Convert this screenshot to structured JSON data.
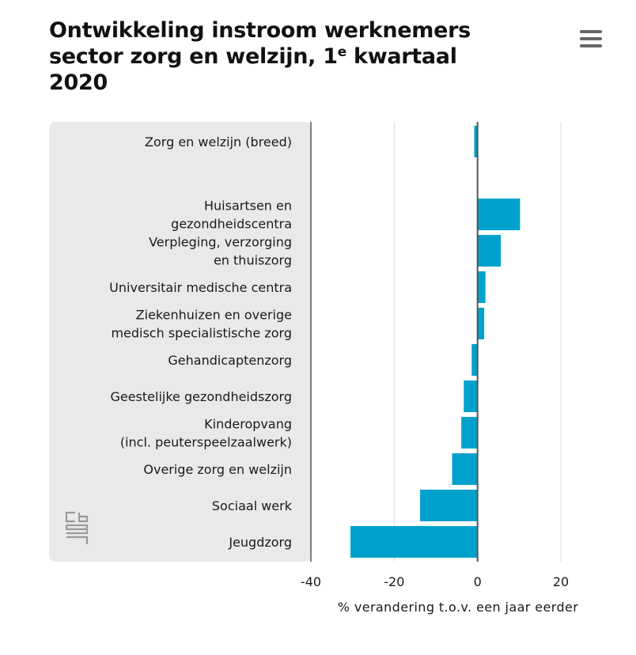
{
  "title": {
    "line1": "Ontwikkeling instroom werknemers",
    "line2_pre": "sector zorg en welzijn, 1",
    "line2_sup": "e",
    "line2_post": " kwartaal",
    "line3": "2020"
  },
  "menu_icon": "hamburger-menu-icon",
  "logo_icon": "cbs-logo-icon",
  "colors": {
    "bar": "#00a1cd",
    "panel": "#e9e9e9",
    "grid": "#dddddd",
    "axis": "#555555"
  },
  "chart_data": {
    "type": "bar",
    "orientation": "horizontal",
    "title": "Ontwikkeling instroom werknemers sector zorg en welzijn, 1e kwartaal 2020",
    "xlabel": "% verandering t.o.v. een jaar eerder",
    "xlim": [
      -40,
      20
    ],
    "xticks": [
      -40,
      -20,
      0,
      20
    ],
    "categories": [
      [
        "Zorg en welzijn (breed)"
      ],
      [
        ""
      ],
      [
        "Huisartsen en",
        "gezondheidscentra"
      ],
      [
        "Verpleging, verzorging",
        "en thuiszorg"
      ],
      [
        "Universitair medische centra"
      ],
      [
        "Ziekenhuizen en overige",
        "medisch specialistische zorg"
      ],
      [
        "Gehandicaptenzorg"
      ],
      [
        "Geestelijke gezondheidszorg"
      ],
      [
        "Kinderopvang",
        "(incl. peuterspeelzaalwerk)"
      ],
      [
        "Overige zorg en welzijn"
      ],
      [
        "Sociaal werk"
      ],
      [
        "Jeugdzorg"
      ]
    ],
    "values": [
      -0.8,
      null,
      10.2,
      5.6,
      1.9,
      1.6,
      -1.4,
      -3.3,
      -3.9,
      -6.1,
      -13.8,
      -30.5
    ]
  }
}
